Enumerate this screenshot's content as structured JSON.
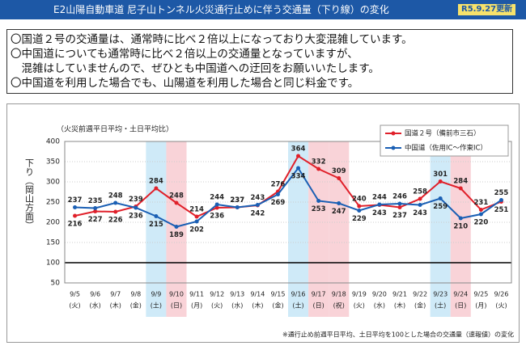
{
  "header": {
    "title": "E2山陽自動車道 尼子山トンネル火災通行止めに伴う交通量（下り線）の変化",
    "badge": "R5.9.27更新"
  },
  "notes": [
    "〇国道２号の交通量は、通常時に比べ２倍以上になっており大変混雑しています。",
    "〇中国道についても通常時に比べ２倍以上の交通量となっていますが、",
    "　混雑はしていませんので、ぜひとも中国道への迂回をお願いいたします。",
    "〇中国道を利用した場合でも、山陽道を利用した場合と同じ料金です。"
  ],
  "side_label": "下り（岡山方面）",
  "footnote": "※通行止め前週平日平均、土日平均を100とした場合の交通量（速報値）の変化",
  "chart_data": {
    "type": "line",
    "y_label": "（火災前週平日平均・土日平均比）",
    "categories": [
      "9/5",
      "9/6",
      "9/7",
      "9/8",
      "9/9",
      "9/10",
      "9/11",
      "9/12",
      "9/13",
      "9/14",
      "9/15",
      "9/16",
      "9/17",
      "9/18",
      "9/19",
      "9/20",
      "9/21",
      "9/22",
      "9/23",
      "9/24",
      "9/25",
      "9/26"
    ],
    "weekdays": [
      "(火)",
      "(水)",
      "(木)",
      "(金)",
      "(土)",
      "(日)",
      "(月)",
      "(火)",
      "(水)",
      "(木)",
      "(金)",
      "(土)",
      "(日)",
      "(祝)",
      "(火)",
      "(水)",
      "(木)",
      "(金)",
      "(土)",
      "(日)",
      "(月)",
      "(火)"
    ],
    "highlight_colors": [
      null,
      null,
      null,
      null,
      "#cfeaf8",
      "#f9d3d8",
      null,
      null,
      null,
      null,
      null,
      "#cfeaf8",
      "#f9d3d8",
      "#f9d3d8",
      null,
      null,
      null,
      null,
      "#cfeaf8",
      "#f9d3d8",
      null,
      null
    ],
    "series": [
      {
        "name": "国道２号（備前市三石）",
        "color": "#e0202a",
        "values": [
          216,
          227,
          226,
          239,
          284,
          248,
          214,
          236,
          237,
          242,
          276,
          364,
          332,
          309,
          240,
          243,
          237,
          258,
          301,
          284,
          231,
          251
        ]
      },
      {
        "name": "中国道（佐用IC～作東IC）",
        "color": "#1a5fb4",
        "values": [
          237,
          235,
          248,
          236,
          215,
          189,
          202,
          244,
          237,
          243,
          269,
          334,
          253,
          247,
          229,
          244,
          246,
          243,
          259,
          210,
          220,
          255
        ]
      }
    ],
    "ylim": [
      50,
      400
    ],
    "yticks": [
      50,
      100,
      150,
      200,
      250,
      300,
      350,
      400
    ],
    "grid": true,
    "reference_line": 100,
    "legend": "top-right"
  }
}
